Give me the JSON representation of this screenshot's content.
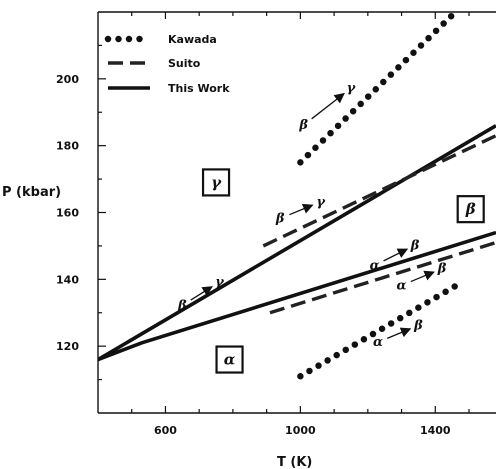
{
  "chart_data": {
    "type": "line",
    "title": "",
    "xlabel": "T (K)",
    "ylabel": "P (kbar)",
    "xlim": [
      400,
      1580
    ],
    "ylim": [
      100,
      220
    ],
    "xticks": [
      600,
      1000,
      1400
    ],
    "xtick_labels": [
      "600",
      "1000",
      "1400"
    ],
    "yticks": [
      120,
      140,
      160,
      180,
      200
    ],
    "ytick_labels": [
      "120",
      "140",
      "160",
      "180",
      "200"
    ],
    "grid": false,
    "legend_position": "top-left",
    "legend": [
      {
        "label": "Kawada",
        "style": "dotted"
      },
      {
        "label": "Suito",
        "style": "dashed"
      },
      {
        "label": "This Work",
        "style": "solid"
      }
    ],
    "series": [
      {
        "name": "This Work",
        "style": "solid",
        "transition": "β → γ",
        "x": [
          400,
          1580
        ],
        "y": [
          116,
          186
        ]
      },
      {
        "name": "This Work",
        "style": "solid",
        "transition": "α → β",
        "x": [
          400,
          530,
          1580
        ],
        "y": [
          116,
          121,
          154
        ]
      },
      {
        "name": "Suito",
        "style": "dashed",
        "transition": "β → γ",
        "x": [
          890,
          1580
        ],
        "y": [
          150,
          183
        ]
      },
      {
        "name": "Suito",
        "style": "dashed",
        "transition": "α → β",
        "x": [
          910,
          1580
        ],
        "y": [
          130,
          151
        ]
      },
      {
        "name": "Kawada",
        "style": "dotted",
        "transition": "β → γ",
        "x": [
          1000,
          1460
        ],
        "y": [
          175,
          220
        ]
      },
      {
        "name": "Kawada",
        "style": "dotted",
        "transition": "α → β",
        "x": [
          1000,
          1460
        ],
        "y": [
          111,
          138
        ]
      }
    ],
    "annotations": [
      {
        "text": "β",
        "x": 1010,
        "y": 185
      },
      {
        "text": "γ",
        "x": 1150,
        "y": 196
      },
      {
        "text": "β",
        "x": 650,
        "y": 131
      },
      {
        "text": "γ",
        "x": 760,
        "y": 138
      },
      {
        "text": "β",
        "x": 940,
        "y": 157
      },
      {
        "text": "γ",
        "x": 1060,
        "y": 162
      },
      {
        "text": "α",
        "x": 1220,
        "y": 143
      },
      {
        "text": "β",
        "x": 1340,
        "y": 149
      },
      {
        "text": "α",
        "x": 1300,
        "y": 137
      },
      {
        "text": "β",
        "x": 1420,
        "y": 142
      },
      {
        "text": "α",
        "x": 1230,
        "y": 120
      },
      {
        "text": "β",
        "x": 1350,
        "y": 125
      }
    ],
    "phase_labels": [
      {
        "text": "γ",
        "x": 750,
        "y": 169
      },
      {
        "text": "β",
        "x": 1505,
        "y": 161
      },
      {
        "text": "α",
        "x": 790,
        "y": 116
      }
    ]
  }
}
